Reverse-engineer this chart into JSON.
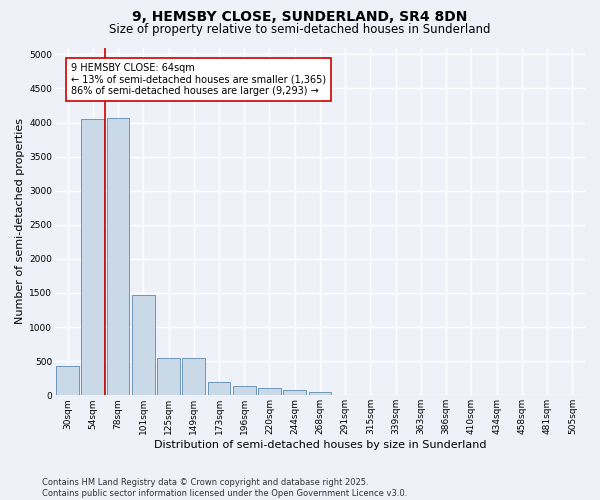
{
  "title": "9, HEMSBY CLOSE, SUNDERLAND, SR4 8DN",
  "subtitle": "Size of property relative to semi-detached houses in Sunderland",
  "xlabel": "Distribution of semi-detached houses by size in Sunderland",
  "ylabel": "Number of semi-detached properties",
  "categories": [
    "30sqm",
    "54sqm",
    "78sqm",
    "101sqm",
    "125sqm",
    "149sqm",
    "173sqm",
    "196sqm",
    "220sqm",
    "244sqm",
    "268sqm",
    "291sqm",
    "315sqm",
    "339sqm",
    "363sqm",
    "386sqm",
    "410sqm",
    "434sqm",
    "458sqm",
    "481sqm",
    "505sqm"
  ],
  "values": [
    430,
    4050,
    4070,
    1470,
    540,
    540,
    200,
    130,
    110,
    80,
    55,
    10,
    4,
    2,
    1,
    1,
    0,
    0,
    0,
    0,
    0
  ],
  "bar_color": "#c9d9e8",
  "bar_edge_color": "#5a8ab0",
  "vline_color": "#cc0000",
  "vline_x": 1.5,
  "annotation_box_text": "9 HEMSBY CLOSE: 64sqm\n← 13% of semi-detached houses are smaller (1,365)\n86% of semi-detached houses are larger (9,293) →",
  "ylim": [
    0,
    5100
  ],
  "yticks": [
    0,
    500,
    1000,
    1500,
    2000,
    2500,
    3000,
    3500,
    4000,
    4500,
    5000
  ],
  "footnote": "Contains HM Land Registry data © Crown copyright and database right 2025.\nContains public sector information licensed under the Open Government Licence v3.0.",
  "background_color": "#eef2f8",
  "plot_bg_color": "#eef2f8",
  "grid_color": "#ffffff",
  "title_fontsize": 10,
  "subtitle_fontsize": 8.5,
  "axis_label_fontsize": 8,
  "tick_fontsize": 6.5,
  "annotation_fontsize": 7,
  "footnote_fontsize": 6
}
